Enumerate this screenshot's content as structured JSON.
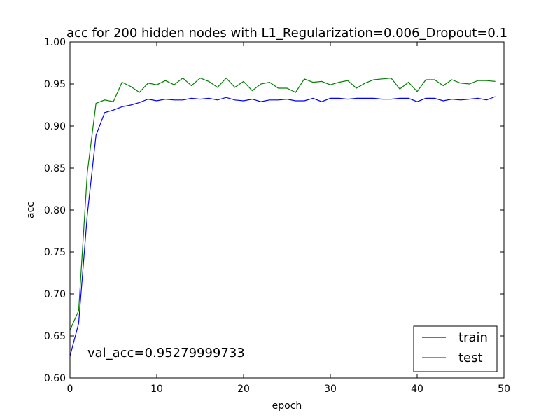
{
  "chart_data": {
    "type": "line",
    "title": "acc for 200 hidden nodes with L1_Regularization=0.006_Dropout=0.1",
    "xlabel": "epoch",
    "ylabel": "acc",
    "xlim": [
      0,
      50
    ],
    "ylim": [
      0.6,
      1.0
    ],
    "x_ticks": [
      "0",
      "10",
      "20",
      "30",
      "40",
      "50"
    ],
    "y_ticks": [
      "0.60",
      "0.65",
      "0.70",
      "0.75",
      "0.80",
      "0.85",
      "0.90",
      "0.95",
      "1.00"
    ],
    "grid": false,
    "legend_position": "bottom-right",
    "annotation": "val_acc=0.95279999733",
    "x": [
      0,
      1,
      2,
      3,
      4,
      5,
      6,
      7,
      8,
      9,
      10,
      11,
      12,
      13,
      14,
      15,
      16,
      17,
      18,
      19,
      20,
      21,
      22,
      23,
      24,
      25,
      26,
      27,
      28,
      29,
      30,
      31,
      32,
      33,
      34,
      35,
      36,
      37,
      38,
      39,
      40,
      41,
      42,
      43,
      44,
      45,
      46,
      47,
      48,
      49
    ],
    "series": [
      {
        "name": "train",
        "color": "#0000ff",
        "values": [
          0.626,
          0.665,
          0.795,
          0.889,
          0.916,
          0.919,
          0.923,
          0.925,
          0.928,
          0.932,
          0.93,
          0.932,
          0.931,
          0.931,
          0.933,
          0.932,
          0.933,
          0.931,
          0.934,
          0.931,
          0.93,
          0.932,
          0.929,
          0.931,
          0.931,
          0.932,
          0.93,
          0.93,
          0.933,
          0.929,
          0.933,
          0.933,
          0.932,
          0.933,
          0.933,
          0.933,
          0.932,
          0.932,
          0.933,
          0.933,
          0.929,
          0.933,
          0.933,
          0.93,
          0.932,
          0.931,
          0.932,
          0.933,
          0.931,
          0.935
        ]
      },
      {
        "name": "test",
        "color": "#008000",
        "values": [
          0.657,
          0.68,
          0.845,
          0.927,
          0.931,
          0.929,
          0.952,
          0.947,
          0.94,
          0.951,
          0.949,
          0.954,
          0.949,
          0.957,
          0.948,
          0.957,
          0.953,
          0.946,
          0.957,
          0.946,
          0.953,
          0.942,
          0.95,
          0.952,
          0.945,
          0.945,
          0.94,
          0.956,
          0.952,
          0.953,
          0.949,
          0.952,
          0.954,
          0.945,
          0.951,
          0.955,
          0.956,
          0.957,
          0.944,
          0.952,
          0.941,
          0.955,
          0.955,
          0.948,
          0.955,
          0.951,
          0.95,
          0.954,
          0.954,
          0.953
        ]
      }
    ]
  }
}
